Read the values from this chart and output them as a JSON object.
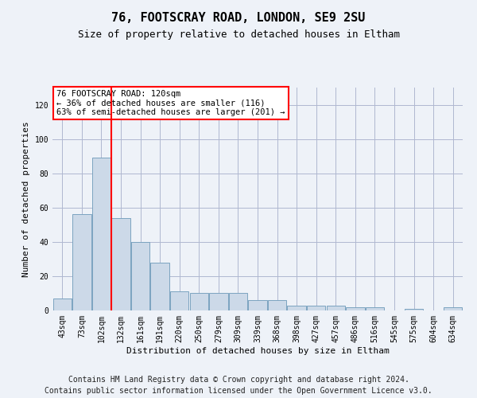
{
  "title": "76, FOOTSCRAY ROAD, LONDON, SE9 2SU",
  "subtitle": "Size of property relative to detached houses in Eltham",
  "xlabel": "Distribution of detached houses by size in Eltham",
  "ylabel": "Number of detached properties",
  "bar_color": "#ccd9e8",
  "bar_edge_color": "#7ba3c0",
  "grid_color": "#b0b8d0",
  "background_color": "#eef2f8",
  "vline_color": "red",
  "annotation_text": "76 FOOTSCRAY ROAD: 120sqm\n← 36% of detached houses are smaller (116)\n63% of semi-detached houses are larger (201) →",
  "annotation_box_color": "white",
  "annotation_box_edge_color": "red",
  "categories": [
    "43sqm",
    "73sqm",
    "102sqm",
    "132sqm",
    "161sqm",
    "191sqm",
    "220sqm",
    "250sqm",
    "279sqm",
    "309sqm",
    "339sqm",
    "368sqm",
    "398sqm",
    "427sqm",
    "457sqm",
    "486sqm",
    "516sqm",
    "545sqm",
    "575sqm",
    "604sqm",
    "634sqm"
  ],
  "values": [
    7,
    56,
    89,
    54,
    40,
    28,
    11,
    10,
    10,
    10,
    6,
    6,
    3,
    3,
    3,
    2,
    2,
    0,
    1,
    0,
    2
  ],
  "ylim": [
    0,
    130
  ],
  "yticks": [
    0,
    20,
    40,
    60,
    80,
    100,
    120
  ],
  "footer_line1": "Contains HM Land Registry data © Crown copyright and database right 2024.",
  "footer_line2": "Contains public sector information licensed under the Open Government Licence v3.0.",
  "title_fontsize": 11,
  "subtitle_fontsize": 9,
  "axis_label_fontsize": 8,
  "tick_fontsize": 7,
  "footer_fontsize": 7
}
